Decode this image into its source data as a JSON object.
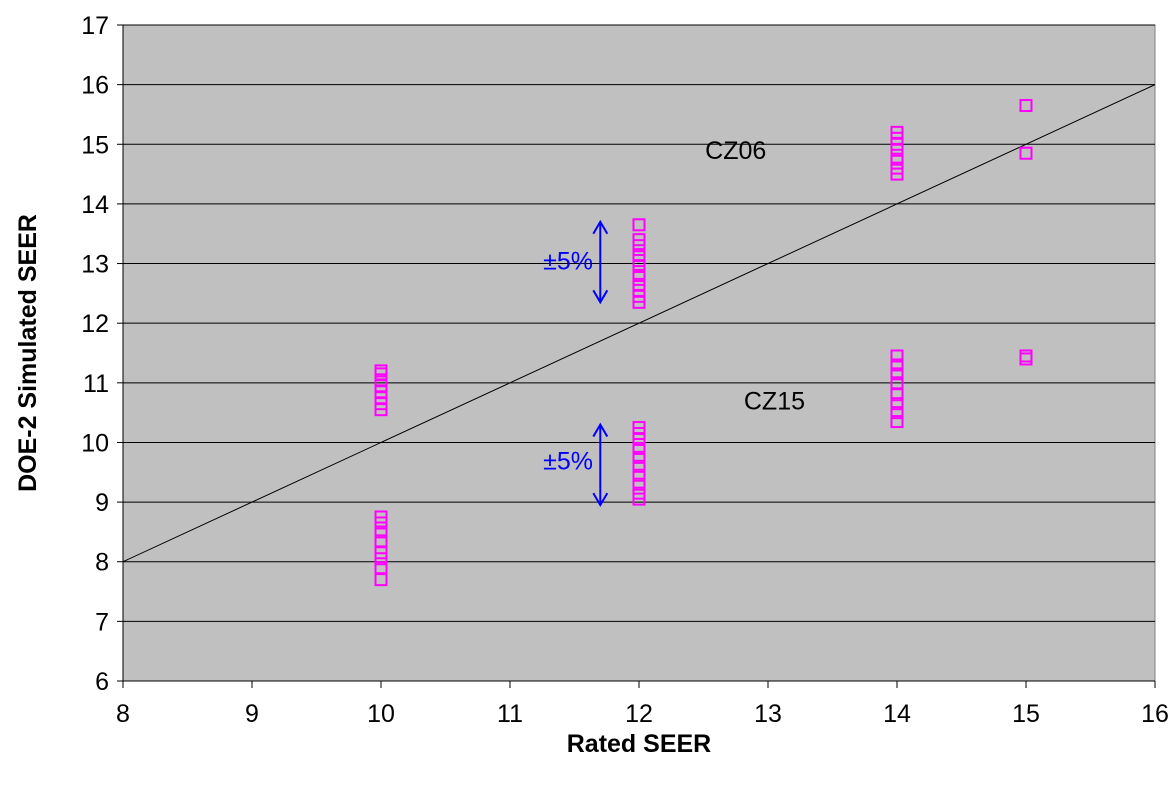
{
  "chart_data": {
    "type": "scatter",
    "title": "",
    "xlabel": "Rated SEER",
    "ylabel": "DOE-2 Simulated SEER",
    "xlim": [
      8,
      16
    ],
    "ylim": [
      6,
      17
    ],
    "xticks": [
      8,
      9,
      10,
      11,
      12,
      13,
      14,
      15,
      16
    ],
    "yticks": [
      6,
      7,
      8,
      9,
      10,
      11,
      12,
      13,
      14,
      15,
      16,
      17
    ],
    "grid": "horizontal",
    "plot_background": "#c0c0c0",
    "marker": "hollow-square",
    "marker_color": "#ff00ff",
    "reference_line": {
      "x": [
        8,
        16
      ],
      "y": [
        8,
        16
      ]
    },
    "series": [
      {
        "points": [
          [
            10,
            10.55
          ],
          [
            10,
            10.65
          ],
          [
            10,
            10.75
          ],
          [
            10,
            10.85
          ],
          [
            10,
            10.95
          ],
          [
            10,
            11.05
          ],
          [
            10,
            11.15
          ],
          [
            10,
            11.2
          ],
          [
            10,
            7.7
          ],
          [
            10,
            7.9
          ],
          [
            10,
            8.05
          ],
          [
            10,
            8.15
          ],
          [
            10,
            8.35
          ],
          [
            10,
            8.5
          ],
          [
            10,
            8.65
          ],
          [
            10,
            8.75
          ],
          [
            12,
            12.35
          ],
          [
            12,
            12.45
          ],
          [
            12,
            12.55
          ],
          [
            12,
            12.65
          ],
          [
            12,
            12.8
          ],
          [
            12,
            12.95
          ],
          [
            12,
            13.05
          ],
          [
            12,
            13.15
          ],
          [
            12,
            13.3
          ],
          [
            12,
            13.4
          ],
          [
            12,
            13.65
          ],
          [
            12,
            9.05
          ],
          [
            12,
            9.15
          ],
          [
            12,
            9.3
          ],
          [
            12,
            9.45
          ],
          [
            12,
            9.6
          ],
          [
            12,
            9.75
          ],
          [
            12,
            9.9
          ],
          [
            12,
            10.05
          ],
          [
            12,
            10.15
          ],
          [
            12,
            10.25
          ],
          [
            14,
            14.5
          ],
          [
            14,
            14.6
          ],
          [
            14,
            14.75
          ],
          [
            14,
            14.9
          ],
          [
            14,
            15.0
          ],
          [
            14,
            15.1
          ],
          [
            14,
            15.2
          ],
          [
            14,
            10.35
          ],
          [
            14,
            10.5
          ],
          [
            14,
            10.65
          ],
          [
            14,
            10.8
          ],
          [
            14,
            11.0
          ],
          [
            14,
            11.15
          ],
          [
            14,
            11.3
          ],
          [
            14,
            11.45
          ],
          [
            15,
            15.65
          ],
          [
            15,
            14.85
          ],
          [
            15,
            11.45
          ],
          [
            15,
            11.4
          ]
        ]
      }
    ],
    "annotations": [
      {
        "text": "CZ06",
        "x": 12.75,
        "y": 14.9
      },
      {
        "text": "CZ15",
        "x": 13.05,
        "y": 10.7
      },
      {
        "text": "±5%",
        "x": 11.45,
        "y": 13.05
      },
      {
        "text": "±5%",
        "x": 11.45,
        "y": 9.7
      }
    ],
    "ranges": [
      {
        "x": 11.7,
        "y_low": 12.35,
        "y_high": 13.7
      },
      {
        "x": 11.7,
        "y_low": 8.95,
        "y_high": 10.3
      }
    ]
  }
}
